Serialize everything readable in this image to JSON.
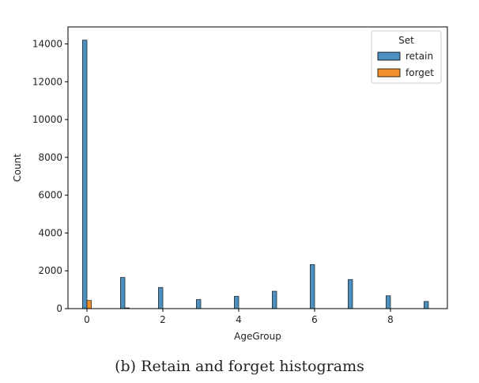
{
  "chart_data": {
    "type": "bar",
    "xlabel": "AgeGroup",
    "ylabel": "Count",
    "xlim": [
      -0.5,
      9.5
    ],
    "ylim": [
      0,
      14900
    ],
    "xticks": [
      0,
      2,
      4,
      6,
      8
    ],
    "yticks": [
      0,
      2000,
      4000,
      6000,
      8000,
      10000,
      12000,
      14000
    ],
    "grid": false,
    "legend": {
      "title": "Set",
      "placement": "top-right"
    },
    "x": [
      0,
      1,
      2,
      3,
      4,
      5,
      6,
      7,
      8,
      9
    ],
    "series": [
      {
        "name": "retain",
        "color": "#4e8fc2",
        "values": [
          14200,
          1650,
          1120,
          480,
          650,
          920,
          2330,
          1540,
          680,
          380
        ]
      },
      {
        "name": "forget",
        "color": "#f28e2b",
        "values": [
          430,
          40,
          0,
          0,
          0,
          0,
          0,
          0,
          0,
          0
        ]
      }
    ]
  },
  "caption": "(b) Retain and forget histograms"
}
